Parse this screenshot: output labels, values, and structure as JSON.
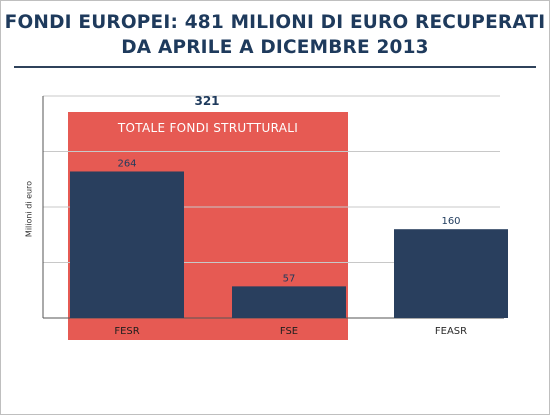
{
  "title_line1": "FONDI EUROPEI: 481 MILIONI DI EURO RECUPERATI",
  "title_line2": "DA APRILE A DICEMBRE 2013",
  "colors": {
    "bar": "#293f5e",
    "highlight": "#e65a53",
    "title": "#1e3a5c",
    "grid": "#c8c8c8"
  },
  "chart_data": {
    "type": "bar",
    "title": "FONDI EUROPEI: 481 MILIONI DI EURO RECUPERATI DA APRILE A DICEMBRE 2013",
    "categories": [
      "FESR",
      "FSE",
      "FEASR"
    ],
    "values": [
      264,
      57,
      160
    ],
    "data_labels": [
      "264",
      "57",
      "160"
    ],
    "xlabel": "",
    "ylabel": "Milioni di euro",
    "ylim": [
      0,
      400
    ],
    "grid": true,
    "highlight_group": {
      "label": "TOTALE FONDI STRUTTURALI",
      "categories": [
        "FESR",
        "FSE"
      ],
      "total": 321,
      "total_label": "321"
    }
  }
}
